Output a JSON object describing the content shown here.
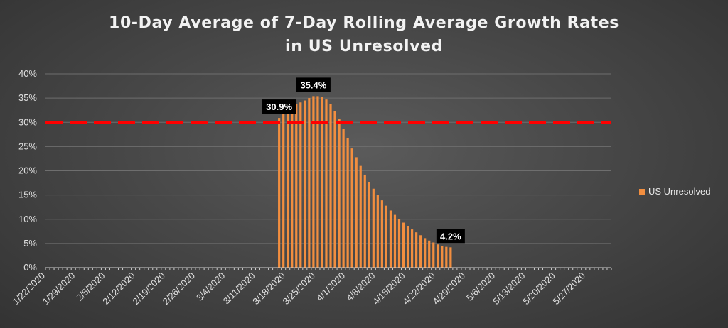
{
  "chart_data": {
    "type": "bar",
    "title_lines": [
      "10-Day Average of 7-Day Rolling Average Growth Rates",
      "in US Unresolved"
    ],
    "xlabel": "",
    "ylabel": "",
    "ylim": [
      0,
      40
    ],
    "y_ticks": [
      "0%",
      "5%",
      "10%",
      "15%",
      "20%",
      "25%",
      "30%",
      "35%",
      "40%"
    ],
    "x_start_date": "1/22/2020",
    "x_end_date": "6/2/2020",
    "x_tick_labels": [
      "1/22/2020",
      "1/29/2020",
      "2/5/2020",
      "2/12/2020",
      "2/19/2020",
      "2/26/2020",
      "3/4/2020",
      "3/11/2020",
      "3/18/2020",
      "3/25/2020",
      "4/1/2020",
      "4/8/2020",
      "4/15/2020",
      "4/22/2020",
      "4/29/2020",
      "5/6/2020",
      "5/13/2020",
      "5/20/2020",
      "5/27/2020"
    ],
    "grid": true,
    "legend_position": "right",
    "reference_line": {
      "value": 30,
      "color": "#ff0000",
      "style": "dashed"
    },
    "series": [
      {
        "name": "US Unresolved",
        "color": "#f28e3f",
        "x": [
          "3/16/2020",
          "3/17/2020",
          "3/18/2020",
          "3/19/2020",
          "3/20/2020",
          "3/21/2020",
          "3/22/2020",
          "3/23/2020",
          "3/24/2020",
          "3/25/2020",
          "3/26/2020",
          "3/27/2020",
          "3/28/2020",
          "3/29/2020",
          "3/30/2020",
          "3/31/2020",
          "4/1/2020",
          "4/2/2020",
          "4/3/2020",
          "4/4/2020",
          "4/5/2020",
          "4/6/2020",
          "4/7/2020",
          "4/8/2020",
          "4/9/2020",
          "4/10/2020",
          "4/11/2020",
          "4/12/2020",
          "4/13/2020",
          "4/14/2020",
          "4/15/2020",
          "4/16/2020",
          "4/17/2020",
          "4/18/2020",
          "4/19/2020",
          "4/20/2020",
          "4/21/2020",
          "4/22/2020",
          "4/23/2020",
          "4/24/2020",
          "4/25/2020"
        ],
        "values": [
          30.9,
          32.0,
          32.8,
          33.3,
          33.7,
          34.1,
          34.5,
          35.0,
          35.4,
          35.4,
          35.2,
          34.7,
          33.7,
          32.3,
          30.7,
          28.6,
          26.7,
          24.6,
          22.8,
          21.0,
          19.2,
          17.7,
          16.3,
          15.0,
          13.9,
          12.8,
          11.8,
          10.9,
          10.1,
          9.3,
          8.6,
          7.9,
          7.3,
          6.7,
          6.1,
          5.6,
          5.2,
          4.8,
          4.5,
          4.3,
          4.2
        ]
      }
    ],
    "data_labels": [
      {
        "x": "3/16/2020",
        "text": "30.9%"
      },
      {
        "x": "3/24/2020",
        "text": "35.4%"
      },
      {
        "x": "4/25/2020",
        "text": "4.2%"
      }
    ]
  }
}
